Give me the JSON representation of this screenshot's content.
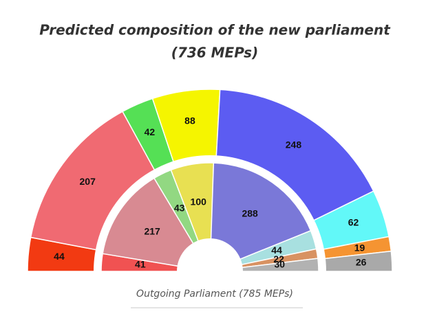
{
  "chart_data": [
    {
      "type": "pie",
      "title": "Predicted composition of the new parliament",
      "subtitle": "(736 MEPs)",
      "values": [
        44,
        207,
        42,
        88,
        248,
        62,
        19,
        26
      ],
      "colors": [
        "#f23a12",
        "#f06a72",
        "#55e055",
        "#f5f500",
        "#5c5cf2",
        "#62f8f8",
        "#f59432",
        "#a9a9a9"
      ]
    },
    {
      "type": "pie",
      "title": "Outgoing Parliament (785 MEPs)",
      "values": [
        41,
        217,
        43,
        100,
        288,
        44,
        22,
        30
      ],
      "colors": [
        "#f05252",
        "#d88a92",
        "#92d882",
        "#e8e052",
        "#7a78d8",
        "#a8e0e0",
        "#d89262",
        "#b2b2b2"
      ]
    }
  ]
}
